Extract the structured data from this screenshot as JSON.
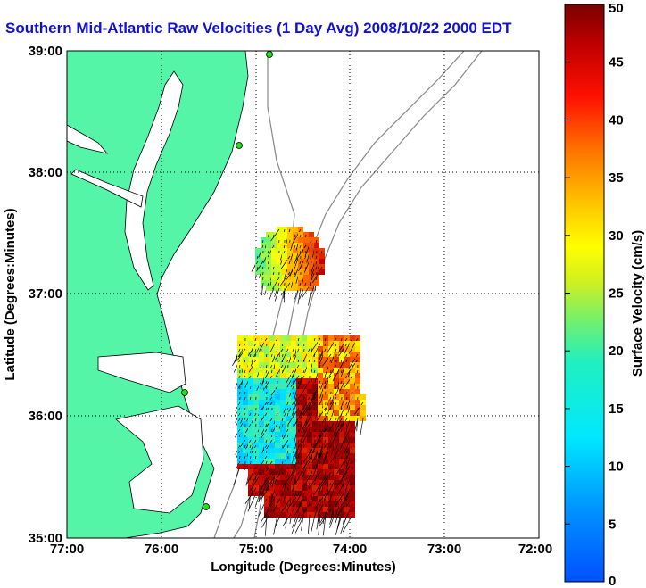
{
  "title": "Southern Mid-Atlantic Raw Velocities (1 Day Avg) 2008/10/22 2000 EDT",
  "map": {
    "x_label": "Longitude (Degrees:Minutes)",
    "y_label": "Latitude (Degrees:Minutes)",
    "x_ticks": [
      "77:00",
      "76:00",
      "75:00",
      "74:00",
      "73:00",
      "72:00"
    ],
    "y_ticks": [
      "39:00",
      "38:00",
      "37:00",
      "36:00",
      "35:00"
    ],
    "lon_range": [
      -77,
      -72
    ],
    "lat_range": [
      35,
      39
    ],
    "land_color": "#55f5a8",
    "grid": "dotted"
  },
  "colorbar": {
    "label": "Surface Velocity (cm/s)",
    "ticks": [
      "0",
      "5",
      "10",
      "15",
      "20",
      "25",
      "30",
      "35",
      "40",
      "45",
      "50"
    ],
    "range": [
      0,
      50
    ]
  }
}
